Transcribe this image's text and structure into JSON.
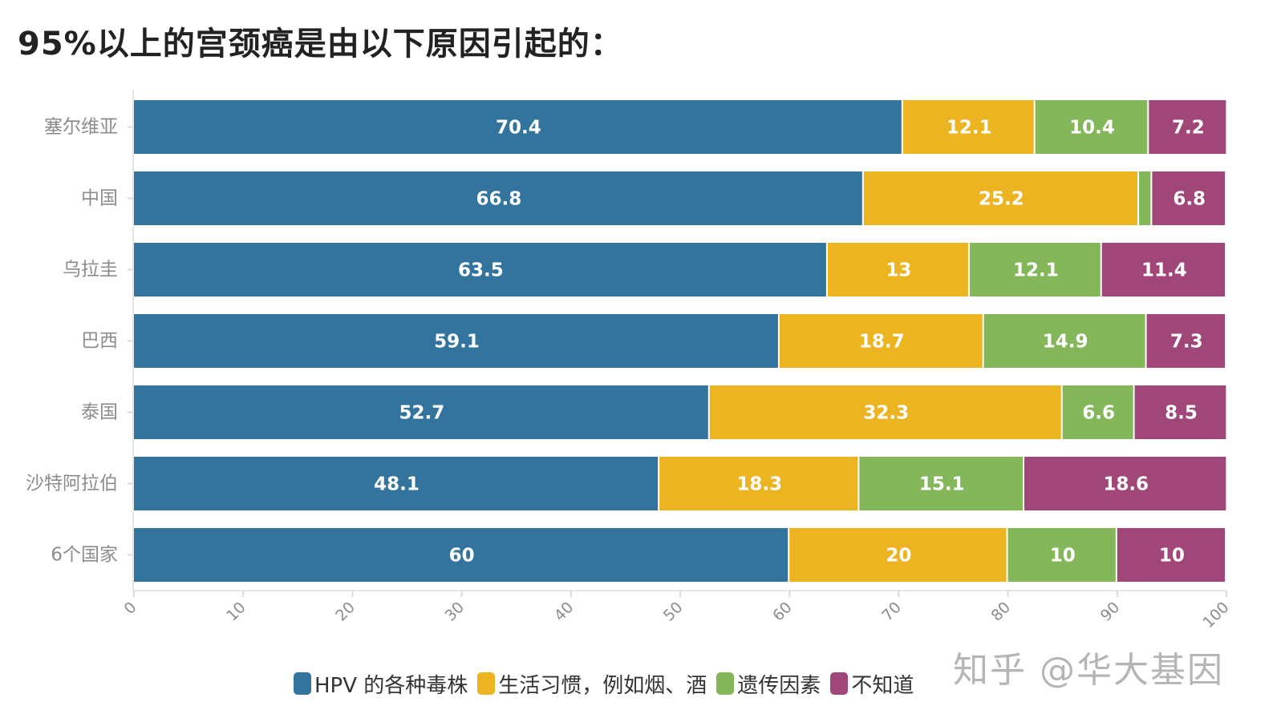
{
  "chart_data": {
    "type": "bar",
    "orientation": "horizontal",
    "stacked": true,
    "title": "95%以上的宫颈癌是由以下原因引起的：",
    "categories": [
      "塞尔维亚",
      "中国",
      "乌拉圭",
      "巴西",
      "泰国",
      "沙特阿拉伯",
      "6个国家"
    ],
    "series": [
      {
        "name": "HPV 的各种毒株",
        "color": "#33749e",
        "values": [
          70.4,
          66.8,
          63.5,
          59.1,
          52.7,
          48.1,
          60
        ],
        "labels": [
          "70.4",
          "66.8",
          "63.5",
          "59.1",
          "52.7",
          "48.1",
          "60"
        ]
      },
      {
        "name": "生活习惯，例如烟、酒",
        "color": "#ecb421",
        "values": [
          12.1,
          25.2,
          13,
          18.7,
          32.3,
          18.3,
          20
        ],
        "labels": [
          "12.1",
          "25.2",
          "13",
          "18.7",
          "32.3",
          "18.3",
          "20"
        ]
      },
      {
        "name": "遗传因素",
        "color": "#83b75a",
        "values": [
          10.4,
          1.2,
          12.1,
          14.9,
          6.6,
          15.1,
          10
        ],
        "labels": [
          "10.4",
          "",
          "12.1",
          "14.9",
          "6.6",
          "15.1",
          "10"
        ]
      },
      {
        "name": "不知道",
        "color": "#a04679",
        "values": [
          7.2,
          6.8,
          11.4,
          7.3,
          8.5,
          18.6,
          10
        ],
        "labels": [
          "7.2",
          "6.8",
          "11.4",
          "7.3",
          "8.5",
          "18.6",
          "10"
        ]
      }
    ],
    "xlim": [
      0,
      100
    ],
    "xticks": [
      "0",
      "10",
      "20",
      "30",
      "40",
      "50",
      "60",
      "70",
      "80",
      "90",
      "100"
    ],
    "xlabel": "",
    "ylabel": "",
    "legend_position": "bottom",
    "grid": false
  },
  "watermark": "知乎 @华大基因"
}
